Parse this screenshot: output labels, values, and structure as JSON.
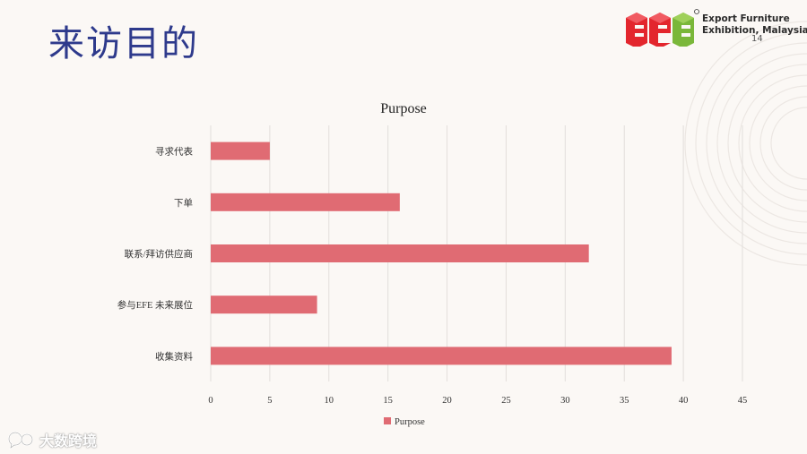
{
  "slide": {
    "title": "来访目的",
    "page_number": "14"
  },
  "logo": {
    "line1": "Export Furniture",
    "line2": "Exhibition, Malaysia",
    "colors": [
      "#e3262d",
      "#e3262d",
      "#7ab73a"
    ]
  },
  "watermark": {
    "text": "大数跨境",
    "icon": "chat-bubble-icon"
  },
  "chart_data": {
    "type": "bar",
    "orientation": "horizontal",
    "title": "Purpose",
    "categories": [
      "寻求代表",
      "下单",
      "联系/拜访供应商",
      "参与EFE 未来展位",
      "收集资料"
    ],
    "series": [
      {
        "name": "Purpose",
        "values": [
          5,
          16,
          32,
          9,
          39
        ],
        "color": "#e06b73"
      }
    ],
    "xlim": [
      0,
      45
    ],
    "xticks": [
      0,
      5,
      10,
      15,
      20,
      25,
      30,
      35,
      40,
      45
    ],
    "grid": true,
    "legend": "bottom"
  }
}
